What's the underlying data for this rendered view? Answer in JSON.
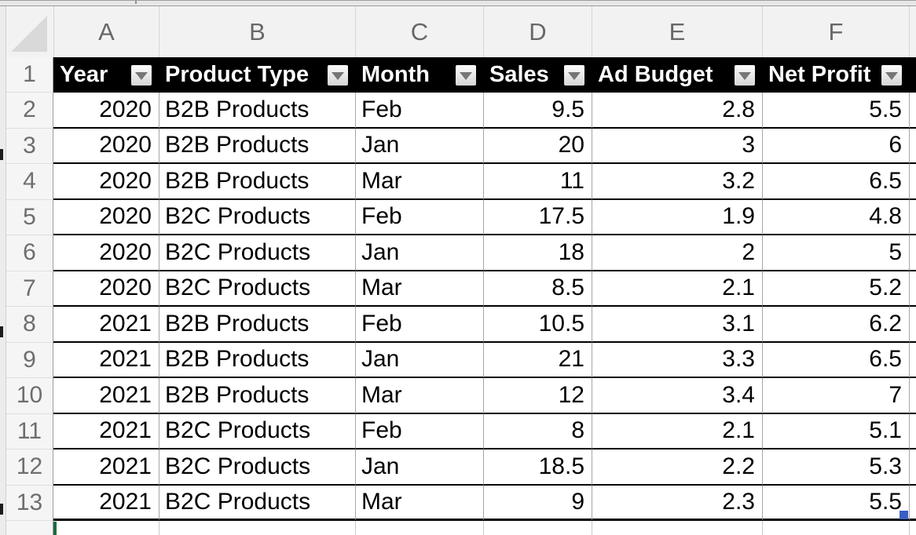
{
  "sheet": {
    "column_letters": [
      "A",
      "B",
      "C",
      "D",
      "E",
      "F"
    ],
    "header_row_number": "1",
    "table": {
      "columns": [
        {
          "label": "Year",
          "align": "right"
        },
        {
          "label": "Product Type",
          "align": "left"
        },
        {
          "label": "Month",
          "align": "left"
        },
        {
          "label": "Sales",
          "align": "right"
        },
        {
          "label": "Ad Budget",
          "align": "right"
        },
        {
          "label": "Net Profit",
          "align": "right"
        }
      ],
      "row_numbers": [
        "2",
        "3",
        "4",
        "5",
        "6",
        "7",
        "8",
        "9",
        "10",
        "11",
        "12",
        "13"
      ],
      "rows": [
        [
          "2020",
          "B2B Products",
          "Feb",
          "9.5",
          "2.8",
          "5.5"
        ],
        [
          "2020",
          "B2B Products",
          "Jan",
          "20",
          "3",
          "6"
        ],
        [
          "2020",
          "B2B Products",
          "Mar",
          "11",
          "3.2",
          "6.5"
        ],
        [
          "2020",
          "B2C Products",
          "Feb",
          "17.5",
          "1.9",
          "4.8"
        ],
        [
          "2020",
          "B2C Products",
          "Jan",
          "18",
          "2",
          "5"
        ],
        [
          "2020",
          "B2C Products",
          "Mar",
          "8.5",
          "2.1",
          "5.2"
        ],
        [
          "2021",
          "B2B Products",
          "Feb",
          "10.5",
          "3.1",
          "6.2"
        ],
        [
          "2021",
          "B2B Products",
          "Jan",
          "21",
          "3.3",
          "6.5"
        ],
        [
          "2021",
          "B2B Products",
          "Mar",
          "12",
          "3.4",
          "7"
        ],
        [
          "2021",
          "B2C Products",
          "Feb",
          "8",
          "2.1",
          "5.1"
        ],
        [
          "2021",
          "B2C Products",
          "Jan",
          "18.5",
          "2.2",
          "5.3"
        ],
        [
          "2021",
          "B2C Products",
          "Mar",
          "9",
          "2.3",
          "5.5"
        ]
      ]
    }
  },
  "icons": {
    "filter_dropdown": "triangle-down",
    "select_all": "corner-triangle"
  },
  "colors": {
    "table_header_fill": "#000000",
    "table_header_text": "#ffffff",
    "grid_line": "#a6a6a6",
    "row_border": "#000000",
    "resize_handle_blue": "#3a5ec4",
    "selection_green": "#1e6b3e"
  }
}
